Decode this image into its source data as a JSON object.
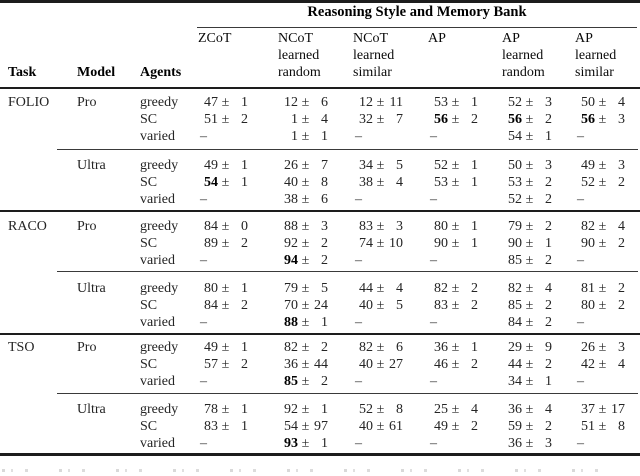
{
  "table": {
    "span_header": "Reasoning Style and Memory Bank",
    "stub_headers": [
      "Task",
      "Model",
      "Agents"
    ],
    "plus_minus": "±",
    "dash": "–",
    "columns": [
      {
        "lines": [
          "ZCoT",
          "",
          ""
        ]
      },
      {
        "lines": [
          "NCoT",
          "learned",
          "random"
        ]
      },
      {
        "lines": [
          "NCoT",
          "learned",
          "similar"
        ]
      },
      {
        "lines": [
          "AP",
          "",
          ""
        ]
      },
      {
        "lines": [
          "AP",
          "learned",
          "random"
        ]
      },
      {
        "lines": [
          "AP",
          "learned",
          "similar"
        ]
      }
    ],
    "groups": [
      {
        "task": "FOLIO",
        "model": "Pro",
        "rows": [
          {
            "agent": "greedy",
            "cells": [
              {
                "v": 47,
                "e": 1
              },
              {
                "v": 12,
                "e": 6
              },
              {
                "v": 12,
                "e": 11
              },
              {
                "v": 53,
                "e": 1
              },
              {
                "v": 52,
                "e": 3
              },
              {
                "v": 50,
                "e": 4
              }
            ]
          },
          {
            "agent": "SC",
            "cells": [
              {
                "v": 51,
                "e": 2
              },
              {
                "v": 1,
                "e": 4
              },
              {
                "v": 32,
                "e": 7
              },
              {
                "v": 56,
                "e": 2,
                "b": true
              },
              {
                "v": 56,
                "e": 2,
                "b": true
              },
              {
                "v": 56,
                "e": 3,
                "b": true
              }
            ]
          },
          {
            "agent": "varied",
            "cells": [
              {
                "d": true
              },
              {
                "v": 1,
                "e": 1
              },
              {
                "d": true
              },
              {
                "d": true
              },
              {
                "v": 54,
                "e": 1
              },
              {
                "d": true
              }
            ]
          }
        ]
      },
      {
        "task": "",
        "model": "Ultra",
        "rows": [
          {
            "agent": "greedy",
            "cells": [
              {
                "v": 49,
                "e": 1
              },
              {
                "v": 26,
                "e": 7
              },
              {
                "v": 34,
                "e": 5
              },
              {
                "v": 52,
                "e": 1
              },
              {
                "v": 50,
                "e": 3
              },
              {
                "v": 49,
                "e": 3
              }
            ]
          },
          {
            "agent": "SC",
            "cells": [
              {
                "v": 54,
                "e": 1,
                "b": true
              },
              {
                "v": 40,
                "e": 8
              },
              {
                "v": 38,
                "e": 4
              },
              {
                "v": 53,
                "e": 1
              },
              {
                "v": 53,
                "e": 2
              },
              {
                "v": 52,
                "e": 2
              }
            ]
          },
          {
            "agent": "varied",
            "cells": [
              {
                "d": true
              },
              {
                "v": 38,
                "e": 6
              },
              {
                "d": true
              },
              {
                "d": true
              },
              {
                "v": 52,
                "e": 2
              },
              {
                "d": true
              }
            ]
          }
        ]
      },
      {
        "task": "RACO",
        "model": "Pro",
        "rows": [
          {
            "agent": "greedy",
            "cells": [
              {
                "v": 84,
                "e": 0
              },
              {
                "v": 88,
                "e": 3
              },
              {
                "v": 83,
                "e": 3
              },
              {
                "v": 80,
                "e": 1
              },
              {
                "v": 79,
                "e": 2
              },
              {
                "v": 82,
                "e": 4
              }
            ]
          },
          {
            "agent": "SC",
            "cells": [
              {
                "v": 89,
                "e": 2
              },
              {
                "v": 92,
                "e": 2
              },
              {
                "v": 74,
                "e": 10
              },
              {
                "v": 90,
                "e": 1
              },
              {
                "v": 90,
                "e": 1
              },
              {
                "v": 90,
                "e": 2
              }
            ]
          },
          {
            "agent": "varied",
            "cells": [
              {
                "d": true
              },
              {
                "v": 94,
                "e": 2,
                "b": true
              },
              {
                "d": true
              },
              {
                "d": true
              },
              {
                "v": 85,
                "e": 2
              },
              {
                "d": true
              }
            ]
          }
        ]
      },
      {
        "task": "",
        "model": "Ultra",
        "rows": [
          {
            "agent": "greedy",
            "cells": [
              {
                "v": 80,
                "e": 1
              },
              {
                "v": 79,
                "e": 5
              },
              {
                "v": 44,
                "e": 4
              },
              {
                "v": 82,
                "e": 2
              },
              {
                "v": 82,
                "e": 4
              },
              {
                "v": 81,
                "e": 2
              }
            ]
          },
          {
            "agent": "SC",
            "cells": [
              {
                "v": 84,
                "e": 2
              },
              {
                "v": 70,
                "e": 24
              },
              {
                "v": 40,
                "e": 5
              },
              {
                "v": 83,
                "e": 2
              },
              {
                "v": 85,
                "e": 2
              },
              {
                "v": 80,
                "e": 2
              }
            ]
          },
          {
            "agent": "varied",
            "cells": [
              {
                "d": true
              },
              {
                "v": 88,
                "e": 1,
                "b": true
              },
              {
                "d": true
              },
              {
                "d": true
              },
              {
                "v": 84,
                "e": 2
              },
              {
                "d": true
              }
            ]
          }
        ]
      },
      {
        "task": "TSO",
        "model": "Pro",
        "rows": [
          {
            "agent": "greedy",
            "cells": [
              {
                "v": 49,
                "e": 1
              },
              {
                "v": 82,
                "e": 2
              },
              {
                "v": 82,
                "e": 6
              },
              {
                "v": 36,
                "e": 1
              },
              {
                "v": 29,
                "e": 9
              },
              {
                "v": 26,
                "e": 3
              }
            ]
          },
          {
            "agent": "SC",
            "cells": [
              {
                "v": 57,
                "e": 2
              },
              {
                "v": 36,
                "e": 44
              },
              {
                "v": 40,
                "e": 27
              },
              {
                "v": 46,
                "e": 2
              },
              {
                "v": 44,
                "e": 2
              },
              {
                "v": 42,
                "e": 4
              }
            ]
          },
          {
            "agent": "varied",
            "cells": [
              {
                "d": true
              },
              {
                "v": 85,
                "e": 2,
                "b": true
              },
              {
                "d": true
              },
              {
                "d": true
              },
              {
                "v": 34,
                "e": 1
              },
              {
                "d": true
              }
            ]
          }
        ]
      },
      {
        "task": "",
        "model": "Ultra",
        "rows": [
          {
            "agent": "greedy",
            "cells": [
              {
                "v": 78,
                "e": 1
              },
              {
                "v": 92,
                "e": 1
              },
              {
                "v": 52,
                "e": 8
              },
              {
                "v": 25,
                "e": 4
              },
              {
                "v": 36,
                "e": 4
              },
              {
                "v": 37,
                "e": 17
              }
            ]
          },
          {
            "agent": "SC",
            "cells": [
              {
                "v": 83,
                "e": 1
              },
              {
                "v": 54,
                "e": 97
              },
              {
                "v": 40,
                "e": 61
              },
              {
                "v": 49,
                "e": 2
              },
              {
                "v": 59,
                "e": 2
              },
              {
                "v": 51,
                "e": 8
              }
            ]
          },
          {
            "agent": "varied",
            "cells": [
              {
                "d": true
              },
              {
                "v": 93,
                "e": 1,
                "b": true
              },
              {
                "d": true
              },
              {
                "d": true
              },
              {
                "v": 36,
                "e": 3
              },
              {
                "d": true
              }
            ]
          }
        ]
      }
    ]
  }
}
